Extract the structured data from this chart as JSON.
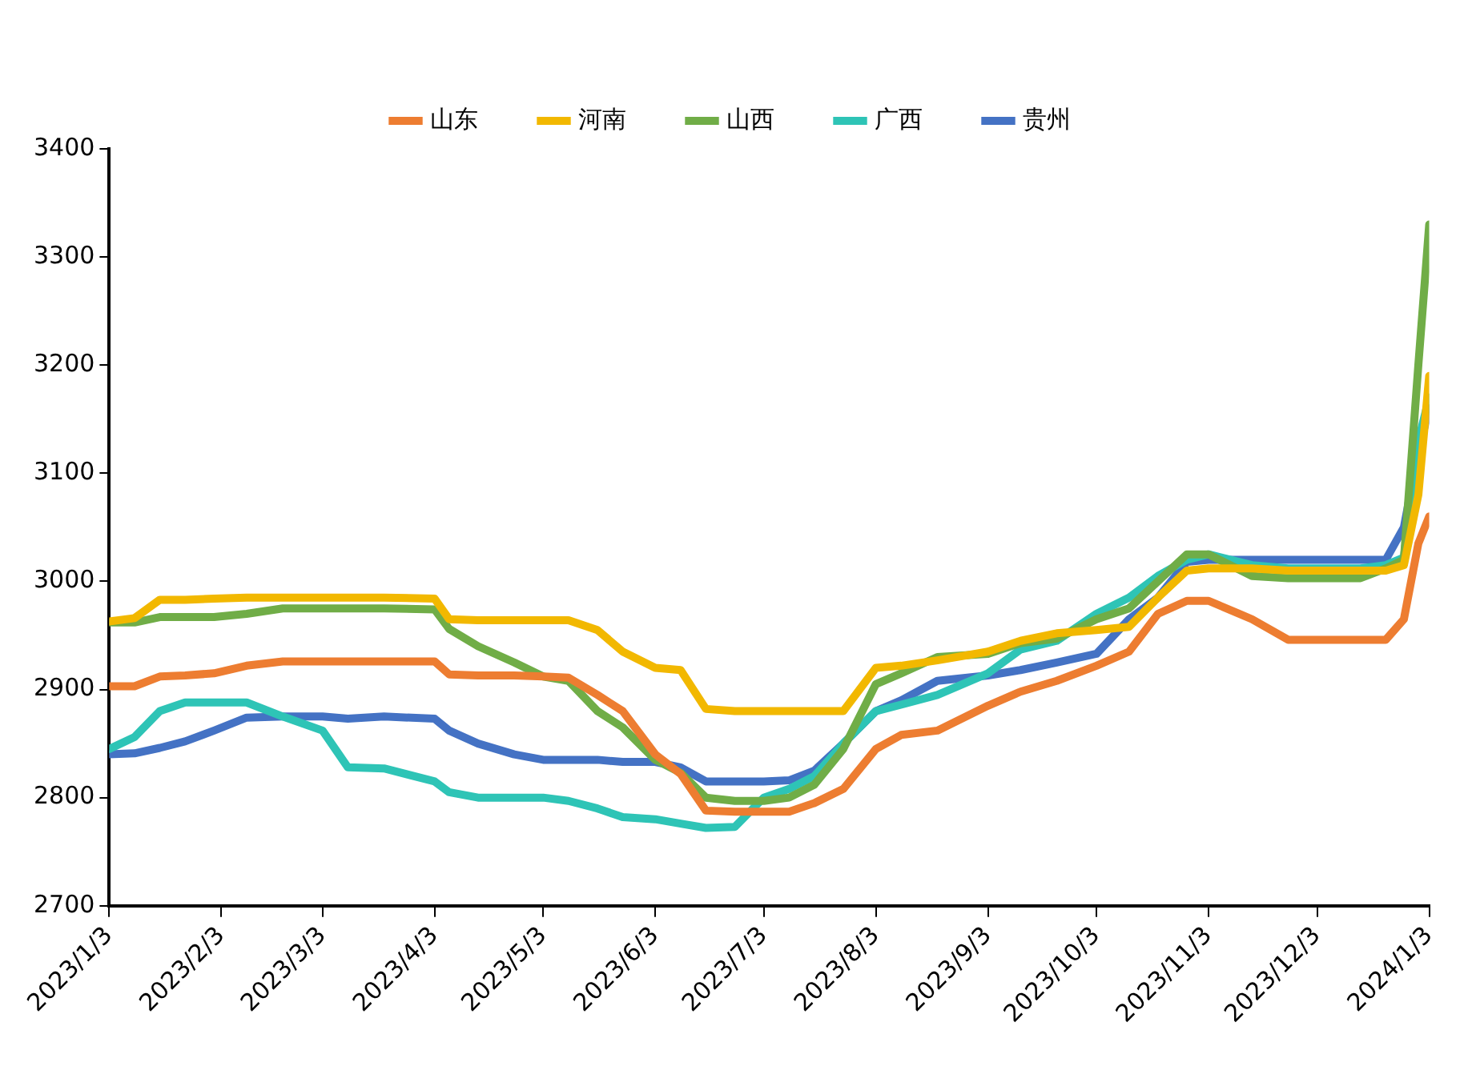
{
  "chart_data": {
    "type": "line",
    "x": [
      "2023-01-03",
      "2023-01-10",
      "2023-01-17",
      "2023-01-24",
      "2023-02-01",
      "2023-02-10",
      "2023-02-20",
      "2023-03-03",
      "2023-03-10",
      "2023-03-20",
      "2023-04-03",
      "2023-04-07",
      "2023-04-15",
      "2023-04-25",
      "2023-05-03",
      "2023-05-10",
      "2023-05-18",
      "2023-05-25",
      "2023-06-03",
      "2023-06-10",
      "2023-06-17",
      "2023-06-25",
      "2023-07-03",
      "2023-07-10",
      "2023-07-17",
      "2023-07-25",
      "2023-08-03",
      "2023-08-10",
      "2023-08-20",
      "2023-09-03",
      "2023-09-12",
      "2023-09-22",
      "2023-10-03",
      "2023-10-12",
      "2023-10-20",
      "2023-10-28",
      "2023-11-03",
      "2023-11-15",
      "2023-11-25",
      "2023-12-03",
      "2023-12-15",
      "2023-12-22",
      "2023-12-27",
      "2023-12-31",
      "2024-01-03"
    ],
    "series": [
      {
        "name": "山东",
        "color": "#ed7d31",
        "values": [
          2903,
          2903,
          2912,
          2913,
          2915,
          2922,
          2926,
          2926,
          2926,
          2926,
          2926,
          2914,
          2913,
          2913,
          2912,
          2911,
          2895,
          2880,
          2840,
          2822,
          2788,
          2787,
          2787,
          2787,
          2795,
          2808,
          2845,
          2858,
          2862,
          2885,
          2898,
          2908,
          2922,
          2935,
          2970,
          2982,
          2982,
          2965,
          2946,
          2946,
          2946,
          2946,
          2965,
          3035,
          3060
        ]
      },
      {
        "name": "河南",
        "color": "#f2b800",
        "values": [
          2963,
          2966,
          2983,
          2983,
          2984,
          2985,
          2985,
          2985,
          2985,
          2985,
          2984,
          2965,
          2964,
          2964,
          2964,
          2964,
          2955,
          2935,
          2920,
          2918,
          2882,
          2880,
          2880,
          2880,
          2880,
          2880,
          2920,
          2922,
          2927,
          2935,
          2945,
          2952,
          2955,
          2958,
          2985,
          3010,
          3012,
          3012,
          3010,
          3010,
          3010,
          3010,
          3015,
          3080,
          3190
        ]
      },
      {
        "name": "山西",
        "color": "#70ad47",
        "values": [
          2962,
          2962,
          2967,
          2967,
          2967,
          2970,
          2975,
          2975,
          2975,
          2975,
          2974,
          2956,
          2940,
          2925,
          2912,
          2908,
          2880,
          2865,
          2835,
          2823,
          2800,
          2797,
          2797,
          2800,
          2812,
          2845,
          2905,
          2915,
          2930,
          2933,
          2943,
          2947,
          2965,
          2975,
          3000,
          3025,
          3025,
          3005,
          3003,
          3003,
          3003,
          3012,
          3020,
          3200,
          3330
        ]
      },
      {
        "name": "广西",
        "color": "#2ec4b6",
        "values": [
          2845,
          2856,
          2880,
          2888,
          2888,
          2888,
          2875,
          2862,
          2828,
          2827,
          2815,
          2805,
          2800,
          2800,
          2800,
          2797,
          2790,
          2782,
          2780,
          2776,
          2772,
          2773,
          2800,
          2808,
          2820,
          2850,
          2880,
          2886,
          2895,
          2915,
          2937,
          2945,
          2970,
          2985,
          3005,
          3020,
          3025,
          3015,
          3012,
          3012,
          3012,
          3015,
          3022,
          3130,
          3170
        ]
      },
      {
        "name": "贵州",
        "color": "#4472c4",
        "values": [
          2840,
          2841,
          2846,
          2852,
          2862,
          2874,
          2875,
          2875,
          2873,
          2875,
          2873,
          2862,
          2850,
          2840,
          2835,
          2835,
          2835,
          2833,
          2833,
          2828,
          2815,
          2815,
          2815,
          2816,
          2825,
          2850,
          2880,
          2890,
          2908,
          2913,
          2918,
          2925,
          2933,
          2965,
          2985,
          3018,
          3020,
          3020,
          3020,
          3020,
          3020,
          3020,
          3050,
          3120,
          3160
        ]
      }
    ],
    "xlim": [
      "2023-01-03",
      "2024-01-03"
    ],
    "xticks": [
      {
        "value": "2023-01-03",
        "label": "2023/1/3"
      },
      {
        "value": "2023-02-03",
        "label": "2023/2/3"
      },
      {
        "value": "2023-03-03",
        "label": "2023/3/3"
      },
      {
        "value": "2023-04-03",
        "label": "2023/4/3"
      },
      {
        "value": "2023-05-03",
        "label": "2023/5/3"
      },
      {
        "value": "2023-06-03",
        "label": "2023/6/3"
      },
      {
        "value": "2023-07-03",
        "label": "2023/7/3"
      },
      {
        "value": "2023-08-03",
        "label": "2023/8/3"
      },
      {
        "value": "2023-09-03",
        "label": "2023/9/3"
      },
      {
        "value": "2023-10-03",
        "label": "2023/10/3"
      },
      {
        "value": "2023-11-03",
        "label": "2023/11/3"
      },
      {
        "value": "2023-12-03",
        "label": "2023/12/3"
      },
      {
        "value": "2024-01-03",
        "label": "2024/1/3"
      }
    ],
    "ylim": [
      2700,
      3400
    ],
    "yticks": [
      2700,
      2800,
      2900,
      3000,
      3100,
      3200,
      3300,
      3400
    ],
    "grid": false,
    "legend": "top",
    "marker": "none",
    "line_style": "solid"
  }
}
